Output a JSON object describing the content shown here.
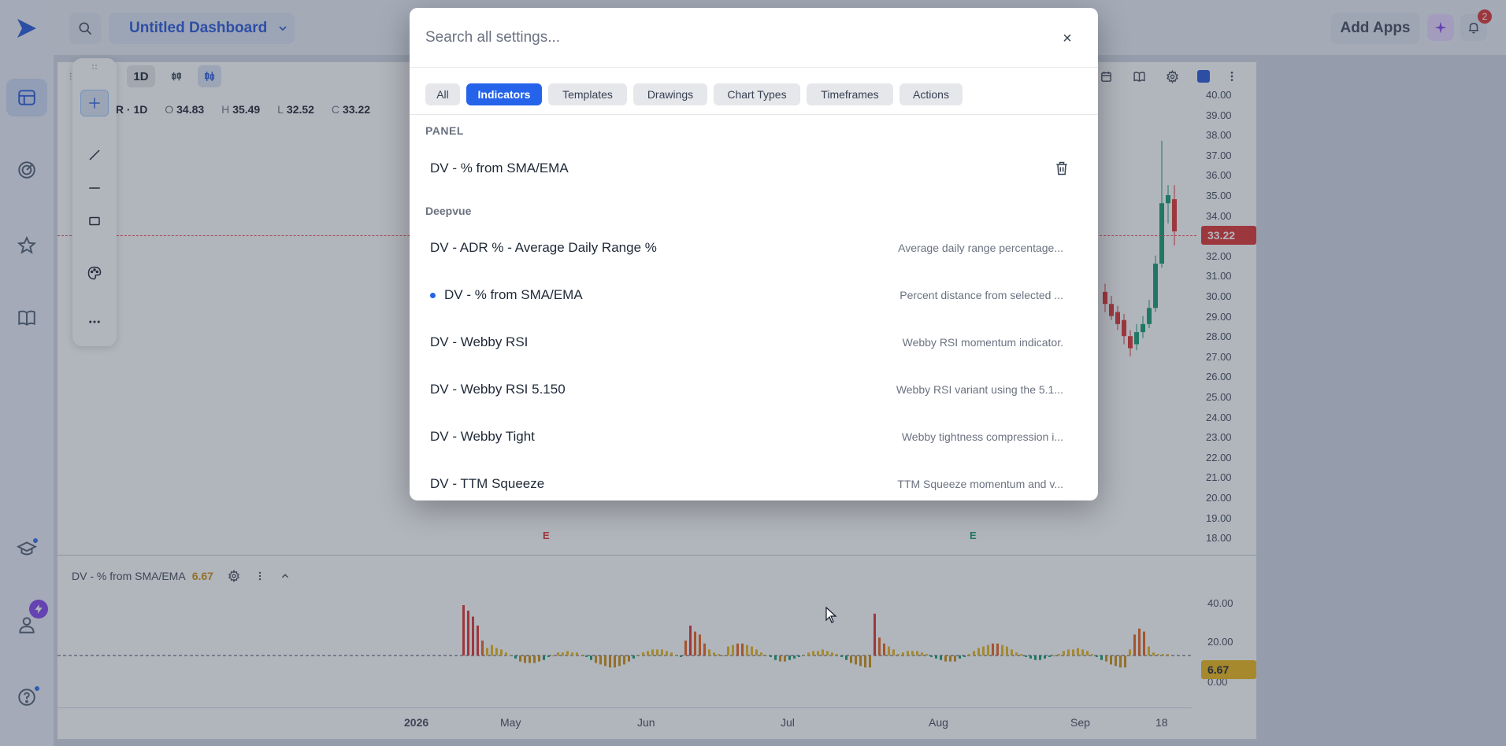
{
  "app": {
    "dashboard_title": "Untitled Dashboard",
    "add_apps_label": "Add Apps",
    "notification_count": "2",
    "accent_color": "#2563eb"
  },
  "rail": {
    "icons": [
      "logo-icon",
      "dashboard-icon",
      "radar-icon",
      "star-icon",
      "book-icon",
      "graduation-cap-icon",
      "user-icon",
      "help-icon"
    ]
  },
  "chart": {
    "timeframe": "1D",
    "symbol_suffix": "IR · 1D",
    "ohlc": {
      "o_label": "O",
      "o": "34.83",
      "h_label": "H",
      "h": "35.49",
      "l_label": "L",
      "l": "32.52",
      "c_label": "C",
      "c": "33.22"
    },
    "price_ticks": [
      "40.00",
      "39.00",
      "38.00",
      "37.00",
      "36.00",
      "35.00",
      "34.00",
      "33.00",
      "32.00",
      "31.00",
      "30.00",
      "29.00",
      "28.00",
      "27.00",
      "26.00",
      "25.00",
      "24.00",
      "23.00",
      "22.00",
      "21.00",
      "20.00",
      "19.00",
      "18.00"
    ],
    "last_price": "33.22",
    "last_price_color": "#dc2626",
    "earnings_marker": "E",
    "time_labels": [
      "2026",
      "May",
      "Jun",
      "Jul",
      "Aug",
      "Sep",
      "18"
    ]
  },
  "indicator": {
    "name": "DV - % from SMA/EMA",
    "value": "6.67",
    "axis_ticks": [
      "40.00",
      "20.00",
      "0.00"
    ],
    "value_tag": "6.67",
    "value_tag_color": "#eab308"
  },
  "modal": {
    "search_placeholder": "Search all settings...",
    "close_label": "×",
    "tabs": [
      {
        "label": "All",
        "active": false
      },
      {
        "label": "Indicators",
        "active": true
      },
      {
        "label": "Templates",
        "active": false
      },
      {
        "label": "Drawings",
        "active": false
      },
      {
        "label": "Chart Types",
        "active": false
      },
      {
        "label": "Timeframes",
        "active": false
      },
      {
        "label": "Actions",
        "active": false
      }
    ],
    "panel_section": {
      "title": "PANEL",
      "items": [
        {
          "title": "DV - % from SMA/EMA"
        }
      ]
    },
    "deepvue_section": {
      "title": "Deepvue",
      "items": [
        {
          "title": "DV - ADR % - Average Daily Range %",
          "desc": "Average daily range percentage..."
        },
        {
          "title": "DV - % from SMA/EMA",
          "desc": "Percent distance from selected ...",
          "active": true
        },
        {
          "title": "DV - Webby RSI",
          "desc": "Webby RSI momentum indicator."
        },
        {
          "title": "DV - Webby RSI 5.150",
          "desc": "Webby RSI variant using the 5.1..."
        },
        {
          "title": "DV - Webby Tight",
          "desc": "Webby tightness compression i..."
        },
        {
          "title": "DV - TTM Squeeze",
          "desc": "TTM Squeeze momentum and v..."
        }
      ]
    }
  }
}
